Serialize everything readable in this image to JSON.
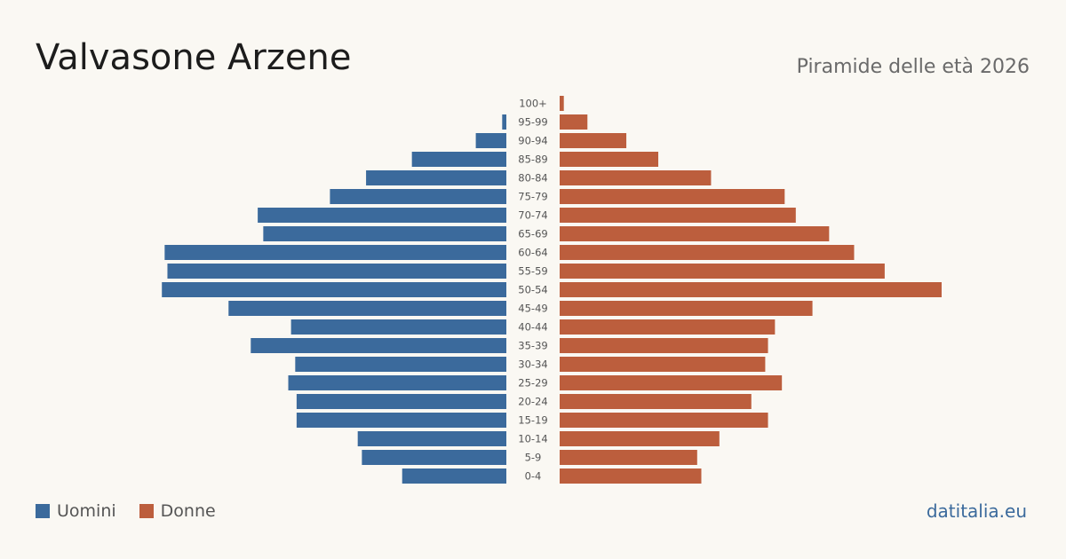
{
  "header": {
    "title": "Valvasone Arzene",
    "subtitle": "Piramide delle età 2026"
  },
  "footer": {
    "source": "datitalia.eu"
  },
  "colors": {
    "men": "#3b6a9c",
    "women": "#bc5e3d",
    "background": "#faf8f3"
  },
  "chart_data": {
    "type": "bar",
    "orientation": "horizontal-pyramid",
    "categories": [
      "100+",
      "95-99",
      "90-94",
      "85-89",
      "80-84",
      "75-79",
      "70-74",
      "65-69",
      "60-64",
      "55-59",
      "50-54",
      "45-49",
      "40-44",
      "35-39",
      "30-34",
      "25-29",
      "20-24",
      "15-19",
      "10-14",
      "5-9",
      "0-4"
    ],
    "series": [
      {
        "name": "Uomini",
        "values": [
          0,
          3,
          22,
          68,
          101,
          127,
          179,
          175,
          246,
          244,
          248,
          200,
          155,
          184,
          152,
          157,
          151,
          151,
          107,
          104,
          75
        ]
      },
      {
        "name": "Donne",
        "values": [
          3,
          20,
          48,
          71,
          109,
          162,
          170,
          194,
          212,
          234,
          275,
          182,
          155,
          150,
          148,
          160,
          138,
          150,
          115,
          99,
          102
        ]
      }
    ],
    "xlim": [
      0,
      275
    ],
    "legend_position": "bottom-left",
    "grid": false
  }
}
